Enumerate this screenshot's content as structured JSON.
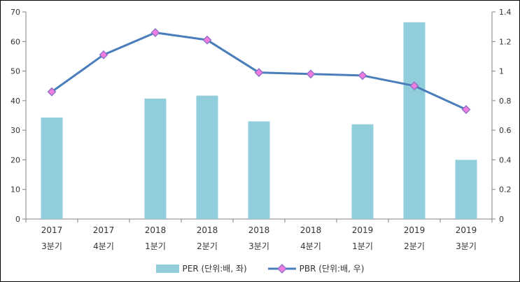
{
  "colors": {
    "bar_fill": "#92CDDC",
    "line_stroke": "#4A7EBB",
    "marker_fill": "#F07CE0",
    "marker_stroke": "#8A6FC8",
    "axis": "#808080",
    "text": "#333333",
    "border": "#000000",
    "background": "#FFFFFF"
  },
  "legend": {
    "per_label": "PER (단위:배, 좌)",
    "pbr_label": "PBR (단위:배, 우)"
  },
  "chart_data": {
    "type": "bar",
    "combo_types": [
      "bar",
      "line"
    ],
    "title": "",
    "xlabel": "",
    "ylabel_left": "",
    "ylabel_right": "",
    "grid": false,
    "legend_position": "bottom",
    "categories": [
      {
        "line1": "2017",
        "line2": "3분기"
      },
      {
        "line1": "2017",
        "line2": "4분기"
      },
      {
        "line1": "2018",
        "line2": "1분기"
      },
      {
        "line1": "2018",
        "line2": "2분기"
      },
      {
        "line1": "2018",
        "line2": "3분기"
      },
      {
        "line1": "2018",
        "line2": "4분기"
      },
      {
        "line1": "2019",
        "line2": "1분기"
      },
      {
        "line1": "2019",
        "line2": "2분기"
      },
      {
        "line1": "2019",
        "line2": "3분기"
      }
    ],
    "series": [
      {
        "name": "PER (단위:배, 좌)",
        "type": "bar",
        "axis": "left",
        "values": [
          34.3,
          null,
          40.7,
          41.7,
          33.0,
          null,
          32.0,
          66.5,
          20.0
        ]
      },
      {
        "name": "PBR (단위:배, 우)",
        "type": "line",
        "axis": "right",
        "values": [
          0.86,
          1.11,
          1.26,
          1.21,
          0.99,
          0.98,
          0.97,
          0.9,
          0.74
        ]
      }
    ],
    "left_axis": {
      "min": 0,
      "max": 70,
      "step": 10,
      "ticks": [
        "0",
        "10",
        "20",
        "30",
        "40",
        "50",
        "60",
        "70"
      ]
    },
    "right_axis": {
      "min": 0,
      "max": 1.4,
      "step": 0.2,
      "ticks": [
        "0",
        "0.2",
        "0.4",
        "0.6",
        "0.8",
        "1",
        "1.2",
        "1.4"
      ]
    }
  }
}
